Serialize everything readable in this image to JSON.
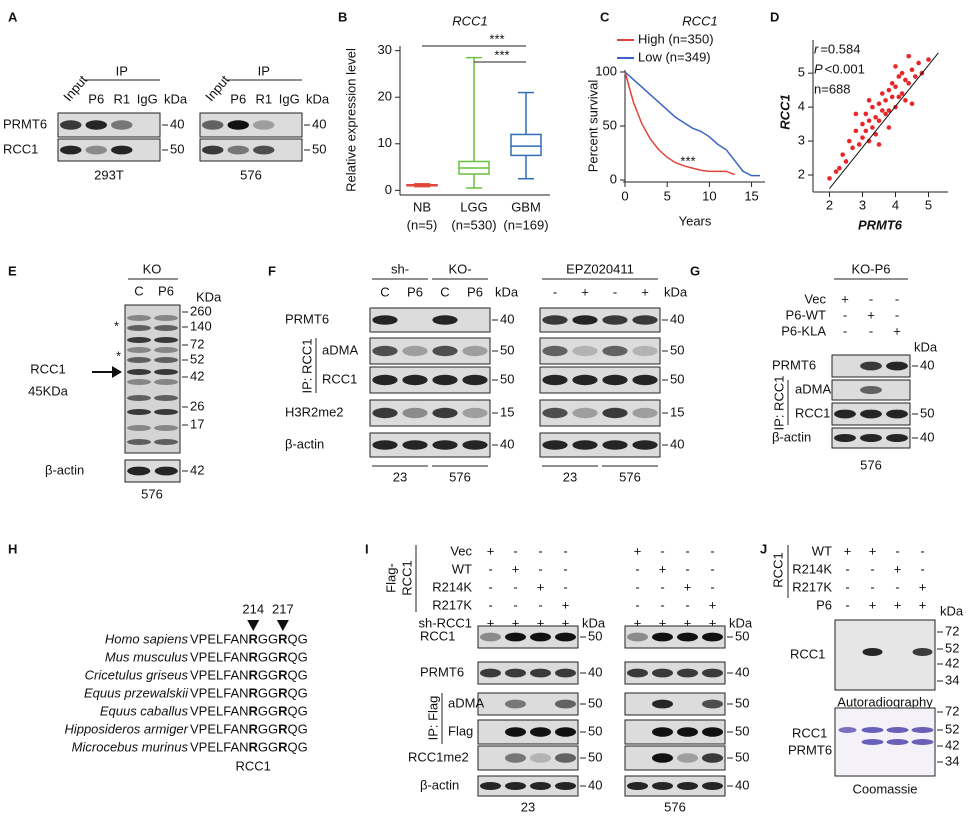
{
  "chart_data": [
    {
      "type": "box",
      "title": "RCC1",
      "y_label": "Relative expression level",
      "categories": [
        "NB",
        "LGG",
        "GBM"
      ],
      "counts": [
        "(n=5)",
        "(n=530)",
        "(n=169)"
      ],
      "colors": [
        "#e0443a",
        "#6cbf3f",
        "#2f6db5"
      ],
      "boxes": [
        {
          "min": 0.8,
          "q1": 1.0,
          "median": 1.1,
          "q3": 1.2,
          "max": 1.4
        },
        {
          "min": 0.5,
          "q1": 3.5,
          "median": 4.8,
          "q3": 6.2,
          "max": 28.5
        },
        {
          "min": 2.5,
          "q1": 7.5,
          "median": 9.5,
          "q3": 12,
          "max": 21
        }
      ],
      "ylim": [
        -1,
        31
      ],
      "yticks": [
        0,
        10,
        20,
        30
      ],
      "annotations": [
        "***",
        "***"
      ]
    },
    {
      "type": "line",
      "title": "RCC1",
      "x_label": "Years",
      "y_label": "Percent survival",
      "x": [
        0,
        1,
        2,
        3,
        4,
        5,
        6,
        7,
        8,
        9,
        10,
        11,
        12,
        13,
        14,
        15,
        16
      ],
      "series": [
        {
          "name": "High (n=350)",
          "color": "#e0443a",
          "values": [
            100,
            72,
            52,
            38,
            28,
            21,
            16,
            13,
            11,
            9,
            8,
            8,
            8,
            5,
            null,
            null,
            null
          ]
        },
        {
          "name": "Low (n=349)",
          "color": "#3b63c4",
          "values": [
            100,
            93,
            86,
            79,
            72,
            65,
            58,
            53,
            48,
            45,
            40,
            33,
            28,
            18,
            8,
            4,
            4
          ]
        }
      ],
      "xlim": [
        0,
        16
      ],
      "xticks": [
        0,
        5,
        10,
        15
      ],
      "ylim": [
        0,
        100
      ],
      "yticks": [
        0,
        50,
        100
      ],
      "annotation": "***"
    },
    {
      "type": "scatter",
      "x_label": "PRMT6",
      "y_label": "RCC1",
      "stats": [
        {
          "label": "r",
          "text": "=0.584"
        },
        {
          "label": "P",
          "text": "<0.001"
        }
      ],
      "n": "n=688",
      "color": "#e8262a",
      "x": [
        2.2,
        2.4,
        2.5,
        2.6,
        2.7,
        2.8,
        2.9,
        3.0,
        3.0,
        3.1,
        3.1,
        3.2,
        3.2,
        3.3,
        3.3,
        3.4,
        3.4,
        3.5,
        3.5,
        3.6,
        3.6,
        3.7,
        3.7,
        3.8,
        3.8,
        3.9,
        3.9,
        4.0,
        4.0,
        4.1,
        4.1,
        4.2,
        4.2,
        4.3,
        4.3,
        4.4,
        4.5,
        4.6,
        4.7,
        4.8,
        2.0,
        2.3,
        2.8,
        3.5,
        4.0,
        4.5,
        5.0,
        3.2,
        3.8,
        4.4
      ],
      "y": [
        2.1,
        2.6,
        2.4,
        3.0,
        2.8,
        3.3,
        2.9,
        3.5,
        3.1,
        3.8,
        3.3,
        3.6,
        3.0,
        4.0,
        3.4,
        3.7,
        3.2,
        4.1,
        3.6,
        3.9,
        4.4,
        3.8,
        4.2,
        4.5,
        3.9,
        4.3,
        4.7,
        4.6,
        4.0,
        4.9,
        4.3,
        4.4,
        5.0,
        4.8,
        4.2,
        4.7,
        5.1,
        4.9,
        5.3,
        5.0,
        1.9,
        2.2,
        3.8,
        2.9,
        5.2,
        4.1,
        5.4,
        4.2,
        3.4,
        5.5
      ],
      "fit": {
        "x": [
          2.0,
          5.3
        ],
        "y": [
          1.6,
          5.6
        ]
      },
      "xlim": [
        1.5,
        5.5
      ],
      "xticks": [
        2,
        3,
        4,
        5
      ],
      "ylim": [
        1.5,
        5.8
      ],
      "yticks": [
        2,
        3,
        4,
        5
      ]
    }
  ],
  "panel_labels": [
    "A",
    "B",
    "C",
    "D",
    "E",
    "F",
    "G",
    "H",
    "I",
    "J"
  ],
  "A": {
    "lanes": [
      "Input",
      "P6",
      "R1",
      "IgG"
    ],
    "ip": "IP",
    "kda": "kDa",
    "rows": [
      "PRMT6",
      "RCC1"
    ],
    "markers": [
      "40",
      "50"
    ],
    "cells": [
      "293T",
      "576"
    ]
  },
  "E": {
    "group": "KO",
    "lanes": [
      "C",
      "P6"
    ],
    "kda": "KDa",
    "markers": [
      "260",
      "140",
      "72",
      "52",
      "42",
      "26",
      "17"
    ],
    "star": "*",
    "target": "RCC1",
    "target_size": "45KDa",
    "loading": "β-actin",
    "loading_marker": "42",
    "cell": "576"
  },
  "F": {
    "groups": [
      "sh-",
      "KO-"
    ],
    "lanes": [
      "C",
      "P6",
      "C",
      "P6"
    ],
    "treatment": "EPZ020411",
    "signs": [
      "-",
      "+",
      "-",
      "+"
    ],
    "kda": "kDa",
    "ip": "IP: RCC1",
    "rows": [
      {
        "name": "PRMT6",
        "marker": "40"
      },
      {
        "name": "aDMA",
        "marker": "50"
      },
      {
        "name": "RCC1",
        "marker": "50"
      },
      {
        "name": "H3R2me2",
        "marker": "15"
      },
      {
        "name": "β-actin",
        "marker": "40"
      }
    ],
    "cells": [
      "23",
      "576"
    ]
  },
  "G": {
    "group": "KO-P6",
    "treatments": [
      {
        "name": "Vec",
        "signs": [
          "+",
          "-",
          "-"
        ]
      },
      {
        "name": "P6-WT",
        "signs": [
          "-",
          "+",
          "-"
        ]
      },
      {
        "name": "P6-KLA",
        "signs": [
          "-",
          "-",
          "+"
        ]
      }
    ],
    "kda": "kDa",
    "ip": "IP: RCC1",
    "rows": [
      {
        "name": "PRMT6",
        "marker": "40"
      },
      {
        "name": "aDMA"
      },
      {
        "name": "RCC1",
        "marker": "50"
      },
      {
        "name": "β-actin",
        "marker": "40"
      }
    ],
    "cell": "576"
  },
  "H": {
    "positions": [
      "214",
      "217"
    ],
    "species": [
      "Homo sapiens",
      "Mus musculus",
      "Cricetulus griseus",
      "Equus przewalskii",
      "Equus caballus",
      "Hipposideros armiger",
      "Microcebus murinus"
    ],
    "sequence": {
      "before": "VPELFAN",
      "site1": "R",
      "between": "GG",
      "site2": "R",
      "after": "QG"
    },
    "protein": "RCC1"
  },
  "I": {
    "construct": [
      "Flag-",
      "RCC1"
    ],
    "treatments": [
      {
        "name": "Vec",
        "signs": [
          "+",
          "-",
          "-",
          "-",
          "+",
          "-",
          "-",
          "-"
        ]
      },
      {
        "name": "WT",
        "signs": [
          "-",
          "+",
          "-",
          "-",
          "-",
          "+",
          "-",
          "-"
        ]
      },
      {
        "name": "R214K",
        "signs": [
          "-",
          "-",
          "+",
          "-",
          "-",
          "-",
          "+",
          "-"
        ]
      },
      {
        "name": "R217K",
        "signs": [
          "-",
          "-",
          "-",
          "+",
          "-",
          "-",
          "-",
          "+"
        ]
      },
      {
        "name": "sh-RCC1",
        "signs": [
          "+",
          "+",
          "+",
          "+",
          "+",
          "+",
          "+",
          "+"
        ]
      }
    ],
    "kda": "kDa",
    "ip": "IP: Flag",
    "rows": [
      {
        "name": "RCC1",
        "marker": "50"
      },
      {
        "name": "PRMT6",
        "marker": "40"
      },
      {
        "name": "aDMA",
        "marker": "50"
      },
      {
        "name": "Flag",
        "marker": "50"
      },
      {
        "name": "RCC1me2",
        "marker": "50"
      },
      {
        "name": "β-actin",
        "marker": "40"
      }
    ],
    "cells": [
      "23",
      "576"
    ]
  },
  "J": {
    "group": "RCC1",
    "treatments": [
      {
        "name": "WT",
        "signs": [
          "+",
          "+",
          "-",
          "-"
        ]
      },
      {
        "name": "R214K",
        "signs": [
          "-",
          "-",
          "+",
          "-"
        ]
      },
      {
        "name": "R217K",
        "signs": [
          "-",
          "-",
          "-",
          "+"
        ]
      },
      {
        "name": "P6",
        "signs": [
          "-",
          "+",
          "+",
          "+"
        ]
      }
    ],
    "kda": "kDa",
    "markers": [
      "72",
      "52",
      "42",
      "34"
    ],
    "autoradiography": {
      "band": "RCC1",
      "caption": "Autoradiography"
    },
    "coomassie": {
      "bands": [
        "RCC1",
        "PRMT6"
      ],
      "caption": "Coomassie"
    }
  }
}
